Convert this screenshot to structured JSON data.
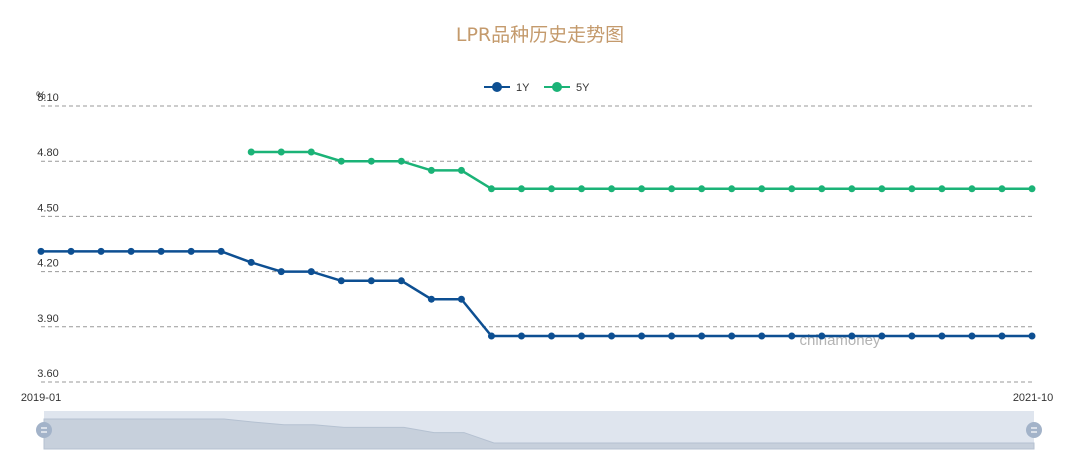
{
  "chart_data": {
    "type": "line",
    "title": "LPR品种历史走势图",
    "ylabel": "%",
    "ylim": [
      3.6,
      5.1
    ],
    "y_ticks": [
      "5.10",
      "4.80",
      "4.50",
      "4.20",
      "3.90",
      "3.60"
    ],
    "x_start_label": "2019-01",
    "x_end_label": "2021-10",
    "grid": true,
    "legend_position": "top-center",
    "watermark": "chinamoney",
    "x": [
      "2019-01",
      "2019-02",
      "2019-03",
      "2019-04",
      "2019-05",
      "2019-06",
      "2019-07",
      "2019-08",
      "2019-09",
      "2019-10",
      "2019-11",
      "2019-12",
      "2020-01",
      "2020-02",
      "2020-03",
      "2020-04",
      "2020-05",
      "2020-06",
      "2020-07",
      "2020-08",
      "2020-09",
      "2020-10",
      "2020-11",
      "2020-12",
      "2021-01",
      "2021-02",
      "2021-03",
      "2021-04",
      "2021-05",
      "2021-06",
      "2021-07",
      "2021-08",
      "2021-09",
      "2021-10"
    ],
    "series": [
      {
        "name": "1Y",
        "color": "#0d4f92",
        "values": [
          4.31,
          4.31,
          4.31,
          4.31,
          4.31,
          4.31,
          4.31,
          4.25,
          4.2,
          4.2,
          4.15,
          4.15,
          4.15,
          4.05,
          4.05,
          3.85,
          3.85,
          3.85,
          3.85,
          3.85,
          3.85,
          3.85,
          3.85,
          3.85,
          3.85,
          3.85,
          3.85,
          3.85,
          3.85,
          3.85,
          3.85,
          3.85,
          3.85,
          3.85
        ]
      },
      {
        "name": "5Y",
        "color": "#1bb377",
        "values": [
          null,
          null,
          null,
          null,
          null,
          null,
          null,
          4.85,
          4.85,
          4.85,
          4.8,
          4.8,
          4.8,
          4.75,
          4.75,
          4.65,
          4.65,
          4.65,
          4.65,
          4.65,
          4.65,
          4.65,
          4.65,
          4.65,
          4.65,
          4.65,
          4.65,
          4.65,
          4.65,
          4.65,
          4.65,
          4.65,
          4.65,
          4.65
        ]
      }
    ]
  },
  "colors": {
    "title": "#c49a6c",
    "grid": "#999999",
    "zoom_bg": "#dfe5ee",
    "zoom_area": "#c7d0dc",
    "zoom_handle": "#a3b3c9"
  }
}
